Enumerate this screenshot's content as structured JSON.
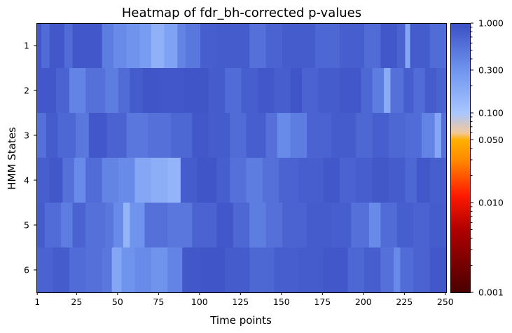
{
  "chart_data": {
    "type": "heatmap",
    "title": "Heatmap of fdr_bh-corrected p-values",
    "xlabel": "Time points",
    "ylabel": "HMM States",
    "x_range": [
      1,
      250
    ],
    "x_ticks": [
      1,
      25,
      50,
      75,
      100,
      125,
      150,
      175,
      200,
      225,
      250
    ],
    "y_categories": [
      "1",
      "2",
      "3",
      "4",
      "5",
      "6"
    ],
    "color_scale": "log",
    "color_range": [
      0.001,
      1.0
    ],
    "colorbar_ticks": [
      "1.000",
      "0.300",
      "0.100",
      "0.050",
      "0.010",
      "0.001"
    ],
    "colorbar_tick_values": [
      1.0,
      0.3,
      0.1,
      0.05,
      0.01,
      0.001
    ],
    "colormap_stops": [
      {
        "p": 0.001,
        "color": "#4a0000"
      },
      {
        "p": 0.005,
        "color": "#b00000"
      },
      {
        "p": 0.012,
        "color": "#ff1a00"
      },
      {
        "p": 0.03,
        "color": "#ff8a00"
      },
      {
        "p": 0.05,
        "color": "#ffb000"
      },
      {
        "p": 0.06,
        "color": "#f3c89a"
      },
      {
        "p": 0.1,
        "color": "#a8c6ff"
      },
      {
        "p": 0.3,
        "color": "#6f94ee"
      },
      {
        "p": 1.0,
        "color": "#3b4fc4"
      }
    ],
    "row_segments": [
      [
        [
          1,
          3,
          0.85
        ],
        [
          4,
          8,
          0.6
        ],
        [
          9,
          17,
          0.85
        ],
        [
          18,
          22,
          0.6
        ],
        [
          23,
          40,
          0.85
        ],
        [
          41,
          47,
          0.45
        ],
        [
          48,
          55,
          0.35
        ],
        [
          56,
          63,
          0.3
        ],
        [
          64,
          70,
          0.25
        ],
        [
          71,
          78,
          0.16
        ],
        [
          79,
          86,
          0.22
        ],
        [
          87,
          91,
          0.4
        ],
        [
          92,
          100,
          0.5
        ],
        [
          101,
          110,
          0.75
        ],
        [
          111,
          130,
          0.8
        ],
        [
          131,
          140,
          0.55
        ],
        [
          141,
          150,
          0.7
        ],
        [
          151,
          170,
          0.8
        ],
        [
          171,
          185,
          0.65
        ],
        [
          186,
          200,
          0.75
        ],
        [
          201,
          210,
          0.6
        ],
        [
          211,
          220,
          0.85
        ],
        [
          221,
          225,
          0.7
        ],
        [
          226,
          228,
          0.2
        ],
        [
          229,
          240,
          0.8
        ],
        [
          241,
          250,
          0.6
        ]
      ],
      [
        [
          1,
          12,
          0.85
        ],
        [
          13,
          20,
          0.7
        ],
        [
          21,
          30,
          0.4
        ],
        [
          31,
          42,
          0.55
        ],
        [
          43,
          50,
          0.45
        ],
        [
          51,
          57,
          0.6
        ],
        [
          58,
          65,
          0.8
        ],
        [
          66,
          75,
          0.9
        ],
        [
          76,
          90,
          0.85
        ],
        [
          91,
          105,
          0.9
        ],
        [
          106,
          115,
          0.8
        ],
        [
          116,
          125,
          0.6
        ],
        [
          126,
          135,
          0.75
        ],
        [
          136,
          145,
          0.85
        ],
        [
          146,
          155,
          0.75
        ],
        [
          156,
          162,
          0.9
        ],
        [
          163,
          172,
          0.7
        ],
        [
          173,
          185,
          0.8
        ],
        [
          186,
          198,
          0.85
        ],
        [
          199,
          205,
          0.65
        ],
        [
          206,
          212,
          0.45
        ],
        [
          213,
          216,
          0.18
        ],
        [
          217,
          224,
          0.55
        ],
        [
          225,
          230,
          0.75
        ],
        [
          231,
          237,
          0.6
        ],
        [
          238,
          244,
          0.8
        ],
        [
          245,
          250,
          0.7
        ]
      ],
      [
        [
          1,
          6,
          0.55
        ],
        [
          7,
          13,
          0.8
        ],
        [
          14,
          24,
          0.65
        ],
        [
          25,
          32,
          0.5
        ],
        [
          33,
          43,
          0.85
        ],
        [
          44,
          55,
          0.7
        ],
        [
          56,
          68,
          0.5
        ],
        [
          69,
          82,
          0.55
        ],
        [
          83,
          95,
          0.65
        ],
        [
          96,
          105,
          0.85
        ],
        [
          106,
          118,
          0.8
        ],
        [
          119,
          128,
          0.6
        ],
        [
          129,
          140,
          0.75
        ],
        [
          141,
          147,
          0.55
        ],
        [
          148,
          155,
          0.35
        ],
        [
          156,
          165,
          0.45
        ],
        [
          166,
          180,
          0.7
        ],
        [
          181,
          195,
          0.8
        ],
        [
          196,
          205,
          0.65
        ],
        [
          206,
          215,
          0.75
        ],
        [
          216,
          225,
          0.65
        ],
        [
          226,
          235,
          0.6
        ],
        [
          236,
          243,
          0.4
        ],
        [
          244,
          247,
          0.2
        ],
        [
          248,
          250,
          0.55
        ]
      ],
      [
        [
          1,
          8,
          0.75
        ],
        [
          9,
          16,
          0.85
        ],
        [
          17,
          23,
          0.55
        ],
        [
          24,
          30,
          0.35
        ],
        [
          31,
          40,
          0.6
        ],
        [
          41,
          50,
          0.4
        ],
        [
          51,
          60,
          0.35
        ],
        [
          61,
          70,
          0.2
        ],
        [
          71,
          80,
          0.17
        ],
        [
          81,
          88,
          0.15
        ],
        [
          89,
          98,
          0.8
        ],
        [
          99,
          110,
          0.9
        ],
        [
          111,
          118,
          0.75
        ],
        [
          119,
          128,
          0.55
        ],
        [
          129,
          138,
          0.45
        ],
        [
          139,
          148,
          0.55
        ],
        [
          149,
          160,
          0.7
        ],
        [
          161,
          175,
          0.75
        ],
        [
          176,
          185,
          0.85
        ],
        [
          186,
          195,
          0.7
        ],
        [
          196,
          205,
          0.75
        ],
        [
          206,
          215,
          0.85
        ],
        [
          216,
          225,
          0.8
        ],
        [
          226,
          232,
          0.65
        ],
        [
          233,
          240,
          0.85
        ],
        [
          241,
          250,
          0.75
        ]
      ],
      [
        [
          1,
          5,
          0.8
        ],
        [
          6,
          15,
          0.6
        ],
        [
          16,
          22,
          0.45
        ],
        [
          23,
          30,
          0.7
        ],
        [
          31,
          42,
          0.55
        ],
        [
          43,
          47,
          0.5
        ],
        [
          48,
          53,
          0.35
        ],
        [
          54,
          57,
          0.15
        ],
        [
          58,
          66,
          0.3
        ],
        [
          67,
          80,
          0.55
        ],
        [
          81,
          95,
          0.5
        ],
        [
          96,
          110,
          0.7
        ],
        [
          111,
          120,
          0.85
        ],
        [
          121,
          130,
          0.65
        ],
        [
          131,
          140,
          0.45
        ],
        [
          141,
          150,
          0.55
        ],
        [
          151,
          165,
          0.7
        ],
        [
          166,
          180,
          0.8
        ],
        [
          181,
          192,
          0.75
        ],
        [
          193,
          203,
          0.55
        ],
        [
          204,
          210,
          0.35
        ],
        [
          211,
          220,
          0.6
        ],
        [
          221,
          230,
          0.75
        ],
        [
          231,
          240,
          0.7
        ],
        [
          241,
          250,
          0.8
        ]
      ],
      [
        [
          1,
          10,
          0.7
        ],
        [
          11,
          20,
          0.8
        ],
        [
          21,
          30,
          0.6
        ],
        [
          31,
          40,
          0.55
        ],
        [
          41,
          46,
          0.5
        ],
        [
          47,
          52,
          0.2
        ],
        [
          53,
          60,
          0.3
        ],
        [
          61,
          70,
          0.35
        ],
        [
          71,
          80,
          0.3
        ],
        [
          81,
          89,
          0.4
        ],
        [
          90,
          100,
          0.85
        ],
        [
          101,
          115,
          0.9
        ],
        [
          116,
          130,
          0.8
        ],
        [
          131,
          145,
          0.65
        ],
        [
          146,
          160,
          0.75
        ],
        [
          161,
          175,
          0.8
        ],
        [
          176,
          190,
          0.85
        ],
        [
          191,
          200,
          0.65
        ],
        [
          201,
          210,
          0.75
        ],
        [
          211,
          218,
          0.55
        ],
        [
          219,
          222,
          0.35
        ],
        [
          223,
          230,
          0.6
        ],
        [
          231,
          240,
          0.7
        ],
        [
          241,
          250,
          0.85
        ]
      ]
    ]
  }
}
